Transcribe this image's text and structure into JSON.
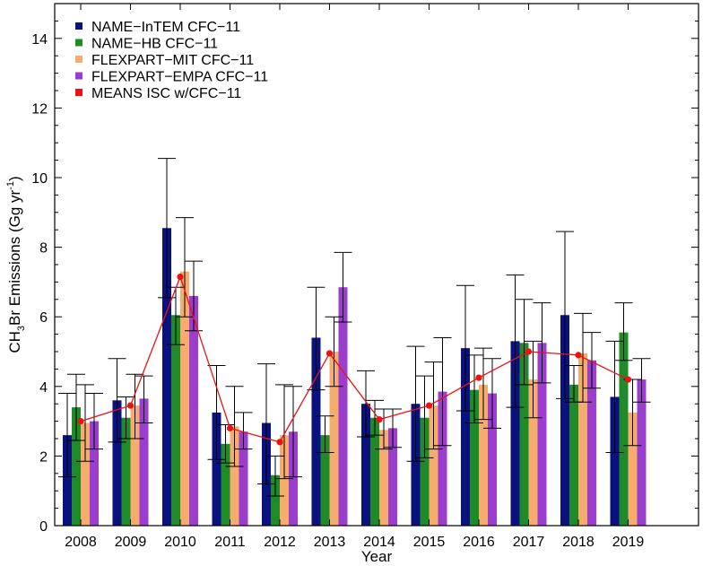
{
  "chart_data": {
    "type": "bar",
    "title": "",
    "xlabel": "Year",
    "ylabel_prefix": "CH",
    "ylabel_sub": "3",
    "ylabel_mid": "Br Emissions (Gg yr",
    "ylabel_sup": "-1",
    "ylabel_end": ")",
    "ylim": [
      0,
      15
    ],
    "yticks": [
      0,
      2,
      4,
      6,
      8,
      10,
      12,
      14
    ],
    "categories": [
      "2008",
      "2009",
      "2010",
      "2011",
      "2012",
      "2013",
      "2014",
      "2015",
      "2016",
      "2017",
      "2018",
      "2019"
    ],
    "legend_position": "top-left",
    "grid": false,
    "series": [
      {
        "name": "NAME−InTEM CFC−11",
        "color": "#0a1280",
        "values": [
          2.6,
          3.6,
          8.55,
          3.25,
          2.95,
          5.4,
          3.5,
          3.5,
          5.1,
          5.3,
          6.05,
          3.7
        ],
        "err_low": [
          1.4,
          2.4,
          6.55,
          1.9,
          1.2,
          3.9,
          2.55,
          1.85,
          3.3,
          3.4,
          3.65,
          2.1
        ],
        "err_high": [
          3.8,
          4.8,
          10.55,
          4.6,
          4.65,
          6.85,
          4.45,
          5.15,
          6.9,
          7.2,
          8.45,
          5.3
        ]
      },
      {
        "name": "NAME−HB CFC−11",
        "color": "#1e8a28",
        "values": [
          3.4,
          3.1,
          6.05,
          2.35,
          1.45,
          2.6,
          3.1,
          3.1,
          3.9,
          5.25,
          4.05,
          5.55
        ],
        "err_low": [
          2.45,
          2.5,
          5.2,
          1.8,
          0.85,
          2.1,
          2.6,
          1.95,
          2.95,
          4.05,
          3.55,
          4.75
        ],
        "err_high": [
          4.35,
          3.7,
          6.85,
          2.9,
          2.0,
          3.15,
          3.6,
          4.3,
          4.9,
          6.5,
          4.6,
          6.4
        ]
      },
      {
        "name": "FLEXPART−MIT CFC−11",
        "color": "#f5ac6c",
        "values": [
          2.95,
          3.45,
          7.3,
          2.85,
          2.6,
          5.0,
          2.75,
          3.45,
          4.05,
          4.2,
          4.95,
          3.25
        ],
        "err_low": [
          1.85,
          2.5,
          6.0,
          1.7,
          1.35,
          4.0,
          2.2,
          2.2,
          3.05,
          3.1,
          3.55,
          2.3
        ],
        "err_high": [
          4.05,
          4.35,
          8.85,
          4.0,
          4.05,
          6.0,
          3.35,
          4.7,
          5.1,
          5.3,
          6.1,
          4.2
        ]
      },
      {
        "name": "FLEXPART−EMPA CFC−11",
        "color": "#9b3ed0",
        "values": [
          3.0,
          3.65,
          6.6,
          2.7,
          2.7,
          6.85,
          2.8,
          3.85,
          3.8,
          5.25,
          4.75,
          4.2
        ],
        "err_low": [
          2.2,
          2.95,
          5.6,
          2.2,
          1.4,
          5.85,
          2.25,
          2.3,
          2.8,
          4.1,
          3.95,
          3.55
        ],
        "err_high": [
          3.8,
          4.3,
          7.6,
          3.25,
          4.0,
          7.85,
          3.35,
          5.4,
          4.8,
          6.4,
          5.55,
          4.8
        ]
      }
    ],
    "mean_series": {
      "name": "MEANS ISC w/CFC−11",
      "color": "#ee1111",
      "values": [
        3.0,
        3.45,
        7.15,
        2.8,
        2.4,
        4.95,
        3.05,
        3.45,
        4.25,
        5.0,
        4.9,
        4.2
      ]
    }
  }
}
